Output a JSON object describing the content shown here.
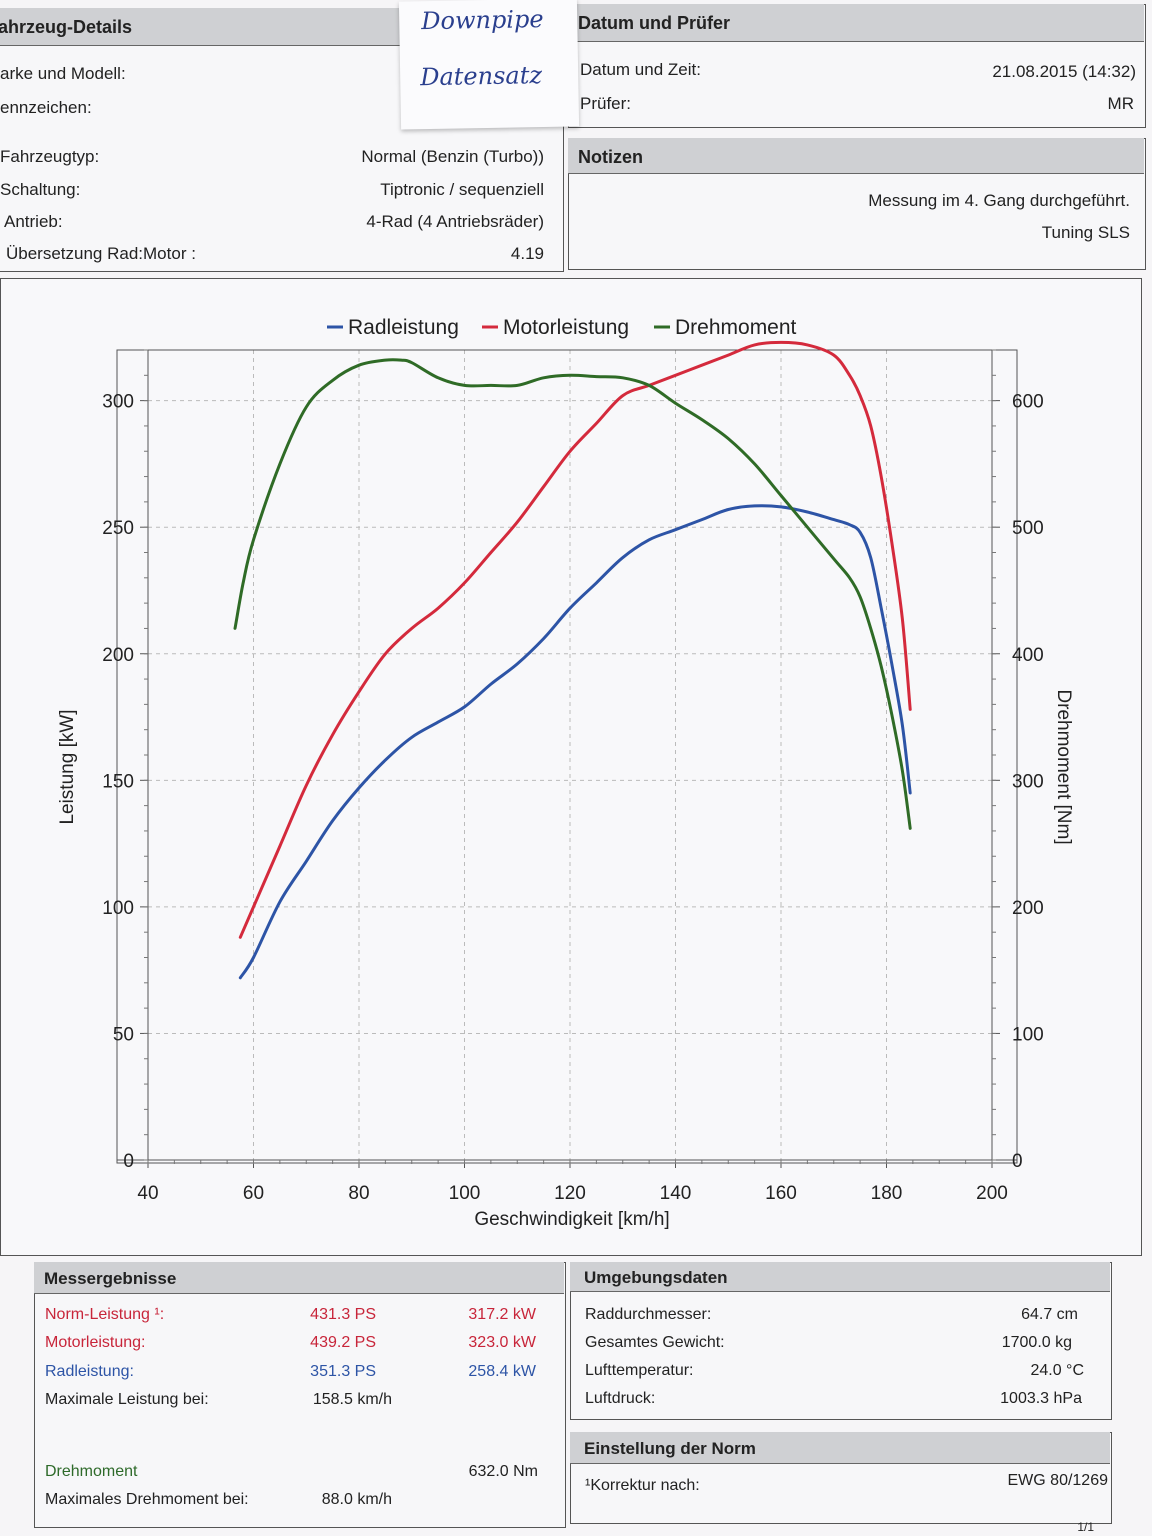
{
  "vehicle": {
    "title": "ahrzeug-Details",
    "rows_top": [
      {
        "label": "arke und Modell:",
        "value": ""
      },
      {
        "label": "ennzeichen:",
        "value": ""
      }
    ],
    "rows": [
      {
        "label": "Fahrzeugtyp:",
        "value": "Normal (Benzin (Turbo))"
      },
      {
        "label": "Schaltung:",
        "value": "Tiptronic / sequenziell"
      },
      {
        "label": "Antrieb:",
        "value": "4-Rad (4 Antriebsräder)"
      },
      {
        "label": "Übersetzung Rad:Motor :",
        "value": "4.19"
      }
    ]
  },
  "sticky_note": {
    "line1": "Downpipe",
    "line2": "Datensatz"
  },
  "date_tester": {
    "title": "Datum und Prüfer",
    "datetime_label": "Datum und Zeit:",
    "datetime_value": "21.08.2015 (14:32)",
    "tester_label": "Prüfer:",
    "tester_value": "MR"
  },
  "notes": {
    "title": "Notizen",
    "line1": "Messung im 4. Gang durchgeführt.",
    "line2": "Tuning SLS"
  },
  "results": {
    "title": "Messergebnisse",
    "norm_label": "Norm-Leistung ¹:",
    "norm_ps": "431.3 PS",
    "norm_kw": "317.2 kW",
    "motor_label": "Motorleistung:",
    "motor_ps": "439.2 PS",
    "motor_kw": "323.0 kW",
    "rad_label": "Radleistung:",
    "rad_ps": "351.3 PS",
    "rad_kw": "258.4 kW",
    "maxp_label": "Maximale Leistung bei:",
    "maxp_value": "158.5 km/h",
    "torque_label": "Drehmoment",
    "torque_value": "632.0 Nm",
    "maxt_label": "Maximales Drehmoment bei:",
    "maxt_value": "88.0 km/h"
  },
  "ambient": {
    "title": "Umgebungsdaten",
    "rows": [
      {
        "label": "Raddurchmesser:",
        "value": "64.7 cm"
      },
      {
        "label": "Gesamtes Gewicht:",
        "value": "1700.0 kg"
      },
      {
        "label": "Lufttemperatur:",
        "value": "24.0 °C"
      },
      {
        "label": "Luftdruck:",
        "value": "1003.3 hPa"
      }
    ]
  },
  "norm": {
    "title": "Einstellung der Norm",
    "label": "¹Korrektur nach:",
    "value": "EWG 80/1269"
  },
  "page_number": "1/1",
  "colors": {
    "rad": "#2d54a6",
    "motor": "#d42a3c",
    "torque": "#2f6b26"
  },
  "chart_data": {
    "type": "line",
    "xlabel": "Geschwindigkeit [km/h]",
    "ylabel": "Leistung [kW]",
    "y2label": "Drehmoment [Nm]",
    "xlim": [
      40,
      200
    ],
    "ylim": [
      0,
      320
    ],
    "y2lim": [
      0,
      640
    ],
    "xticks": [
      40,
      60,
      80,
      100,
      120,
      140,
      160,
      180,
      200
    ],
    "yticks": [
      0,
      50,
      100,
      150,
      200,
      250,
      300
    ],
    "y2ticks": [
      0,
      100,
      200,
      300,
      400,
      500,
      600
    ],
    "grid": true,
    "legend_position": "top",
    "series": [
      {
        "name": "Radleistung",
        "axis": "left",
        "color": "#2d54a6",
        "x": [
          57.5,
          60,
          65,
          70,
          75,
          80,
          85,
          90,
          95,
          100,
          105,
          110,
          115,
          120,
          125,
          130,
          135,
          140,
          145,
          150,
          155,
          160,
          165,
          170,
          173,
          175,
          177,
          179,
          181,
          183,
          184.5
        ],
        "y": [
          72,
          80,
          102,
          118,
          134,
          147,
          158,
          167,
          173,
          179,
          188,
          196,
          206,
          218,
          228,
          238,
          245,
          249,
          253,
          257,
          258.4,
          258,
          256,
          253,
          251,
          248,
          238,
          218,
          196,
          172,
          145
        ]
      },
      {
        "name": "Motorleistung",
        "axis": "left",
        "color": "#d42a3c",
        "x": [
          57.5,
          60,
          65,
          70,
          75,
          80,
          85,
          90,
          95,
          100,
          105,
          110,
          115,
          120,
          125,
          130,
          135,
          140,
          145,
          150,
          155,
          160,
          165,
          170,
          173,
          175,
          177,
          179,
          181,
          183,
          184.5
        ],
        "y": [
          88,
          100,
          124,
          148,
          168,
          185,
          200,
          210,
          218,
          228,
          240,
          252,
          266,
          280,
          291,
          302,
          306,
          310,
          314,
          318,
          322,
          323,
          322,
          318,
          310,
          302,
          290,
          270,
          244,
          214,
          178
        ]
      },
      {
        "name": "Drehmoment",
        "axis": "right",
        "color": "#2f6b26",
        "x": [
          56.5,
          58,
          60,
          65,
          70,
          75,
          80,
          85,
          88,
          90,
          95,
          100,
          105,
          110,
          115,
          120,
          125,
          130,
          135,
          140,
          145,
          150,
          155,
          160,
          165,
          170,
          173,
          175,
          177,
          179,
          181,
          183,
          184.5
        ],
        "y": [
          420,
          455,
          490,
          550,
          595,
          616,
          628,
          632,
          632,
          630,
          618,
          612,
          612,
          612,
          618,
          620,
          619,
          618,
          612,
          598,
          585,
          570,
          550,
          525,
          500,
          475,
          460,
          445,
          420,
          390,
          352,
          308,
          262
        ]
      }
    ]
  }
}
